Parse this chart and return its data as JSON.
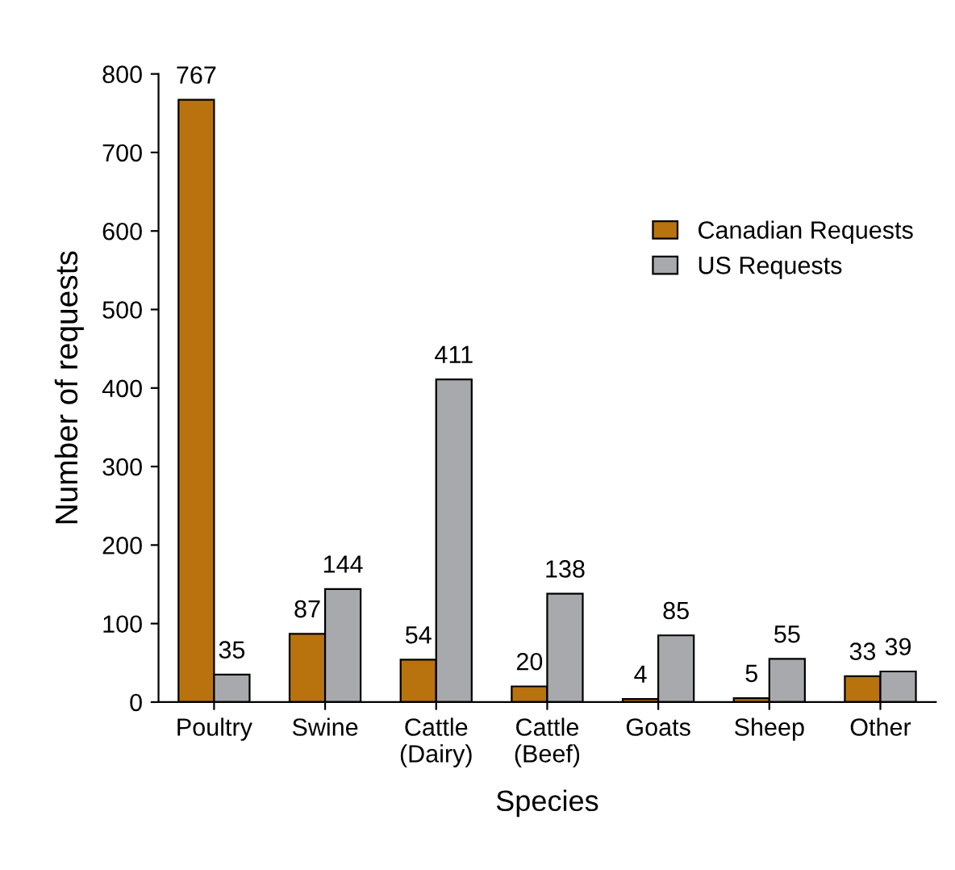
{
  "chart_data": {
    "type": "bar",
    "xlabel": "Species",
    "ylabel": "Number of requests",
    "categories": [
      "Poultry",
      "Swine",
      "Cattle\n(Dairy)",
      "Cattle\n(Beef)",
      "Goats",
      "Sheep",
      "Other"
    ],
    "series": [
      {
        "name": "Canadian Requests",
        "color": "#b8730f",
        "values": [
          767,
          87,
          54,
          20,
          4,
          5,
          33
        ]
      },
      {
        "name": "US Requests",
        "color": "#a7a9ac",
        "values": [
          35,
          144,
          411,
          138,
          85,
          55,
          39
        ]
      }
    ],
    "ylim": [
      0,
      800
    ],
    "yticks": [
      0,
      100,
      200,
      300,
      400,
      500,
      600,
      700,
      800
    ],
    "data_labels": true,
    "legend": "right",
    "grid": false
  }
}
